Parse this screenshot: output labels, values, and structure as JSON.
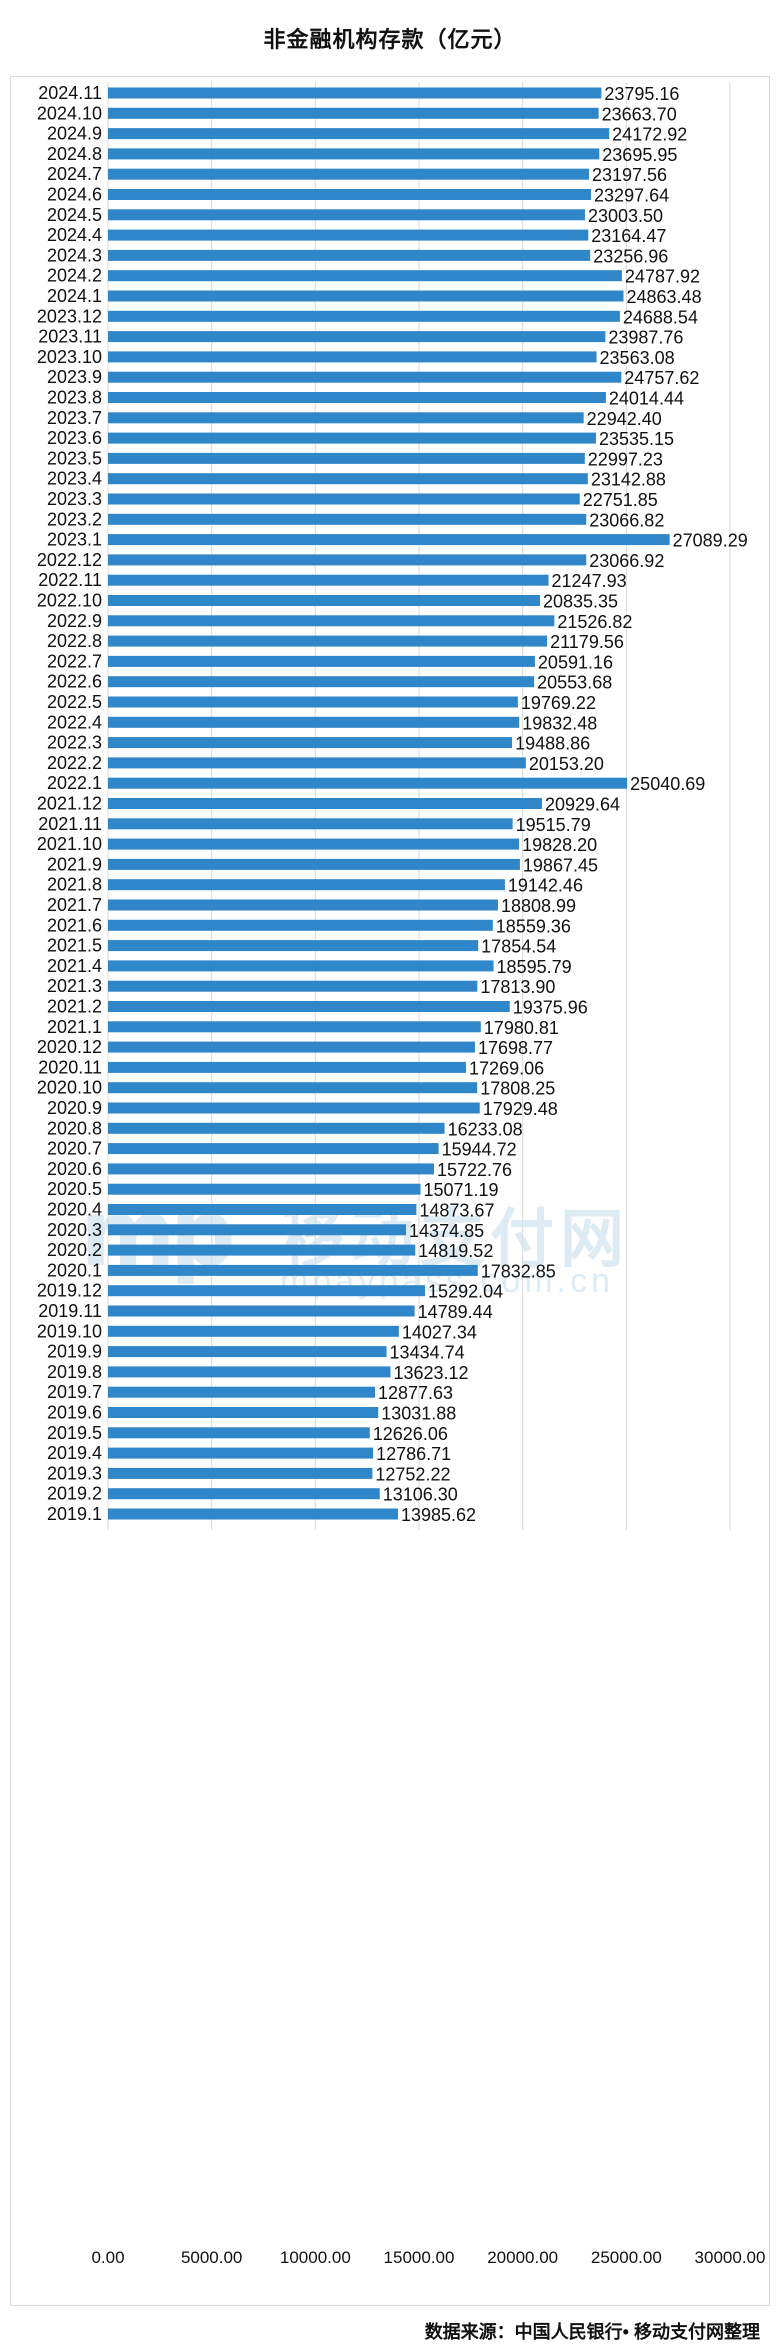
{
  "title": "非金融机构存款（亿元）",
  "source": "数据来源：中国人民银行• 移动支付网整理",
  "watermark": {
    "logo": "mp",
    "cn": "移动支付网",
    "en": "mpaypass.com.cn"
  },
  "colors": {
    "bar": "#2f86c8",
    "grid": "#d9d9d9"
  },
  "chart_data": {
    "type": "bar",
    "orientation": "horizontal",
    "title": "非金融机构存款（亿元）",
    "categories": [
      "2024.11",
      "2024.10",
      "2024.9",
      "2024.8",
      "2024.7",
      "2024.6",
      "2024.5",
      "2024.4",
      "2024.3",
      "2024.2",
      "2024.1",
      "2023.12",
      "2023.11",
      "2023.10",
      "2023.9",
      "2023.8",
      "2023.7",
      "2023.6",
      "2023.5",
      "2023.4",
      "2023.3",
      "2023.2",
      "2023.1",
      "2022.12",
      "2022.11",
      "2022.10",
      "2022.9",
      "2022.8",
      "2022.7",
      "2022.6",
      "2022.5",
      "2022.4",
      "2022.3",
      "2022.2",
      "2022.1",
      "2021.12",
      "2021.11",
      "2021.10",
      "2021.9",
      "2021.8",
      "2021.7",
      "2021.6",
      "2021.5",
      "2021.4",
      "2021.3",
      "2021.2",
      "2021.1",
      "2020.12",
      "2020.11",
      "2020.10",
      "2020.9",
      "2020.8",
      "2020.7",
      "2020.6",
      "2020.5",
      "2020.4",
      "2020.3",
      "2020.2",
      "2020.1",
      "2019.12",
      "2019.11",
      "2019.10",
      "2019.9",
      "2019.8",
      "2019.7",
      "2019.6",
      "2019.5",
      "2019.4",
      "2019.3",
      "2019.2",
      "2019.1"
    ],
    "values": [
      23795.16,
      23663.7,
      24172.92,
      23695.95,
      23197.56,
      23297.64,
      23003.5,
      23164.47,
      23256.96,
      24787.92,
      24863.48,
      24688.54,
      23987.76,
      23563.08,
      24757.62,
      24014.44,
      22942.4,
      23535.15,
      22997.23,
      23142.88,
      22751.85,
      23066.82,
      27089.29,
      23066.92,
      21247.93,
      20835.35,
      21526.82,
      21179.56,
      20591.16,
      20553.68,
      19769.22,
      19832.48,
      19488.86,
      20153.2,
      25040.69,
      20929.64,
      19515.79,
      19828.2,
      19867.45,
      19142.46,
      18808.99,
      18559.36,
      17854.54,
      18595.79,
      17813.9,
      19375.96,
      17980.81,
      17698.77,
      17269.06,
      17808.25,
      17929.48,
      16233.08,
      15944.72,
      15722.76,
      15071.19,
      14873.67,
      14374.85,
      14819.52,
      17832.85,
      15292.04,
      14789.44,
      14027.34,
      13434.74,
      13623.12,
      12877.63,
      13031.88,
      12626.06,
      12786.71,
      12752.22,
      13106.3,
      13985.62
    ],
    "value_labels": [
      "23795.16",
      "23663.70",
      "24172.92",
      "23695.95",
      "23197.56",
      "23297.64",
      "23003.50",
      "23164.47",
      "23256.96",
      "24787.92",
      "24863.48",
      "24688.54",
      "23987.76",
      "23563.08",
      "24757.62",
      "24014.44",
      "22942.40",
      "23535.15",
      "22997.23",
      "23142.88",
      "22751.85",
      "23066.82",
      "27089.29",
      "23066.92",
      "21247.93",
      "20835.35",
      "21526.82",
      "21179.56",
      "20591.16",
      "20553.68",
      "19769.22",
      "19832.48",
      "19488.86",
      "20153.20",
      "25040.69",
      "20929.64",
      "19515.79",
      "19828.20",
      "19867.45",
      "19142.46",
      "18808.99",
      "18559.36",
      "17854.54",
      "18595.79",
      "17813.90",
      "19375.96",
      "17980.81",
      "17698.77",
      "17269.06",
      "17808.25",
      "17929.48",
      "16233.08",
      "15944.72",
      "15722.76",
      "15071.19",
      "14873.67",
      "14374.85",
      "14819.52",
      "17832.85",
      "15292.04",
      "14789.44",
      "14027.34",
      "13434.74",
      "13623.12",
      "12877.63",
      "13031.88",
      "12626.06",
      "12786.71",
      "12752.22",
      "13106.30",
      "13985.62"
    ],
    "xlim": [
      0,
      30000
    ],
    "xticks": [
      0,
      5000,
      10000,
      15000,
      20000,
      25000,
      30000
    ],
    "xtick_labels": [
      "0.00",
      "5000.00",
      "10000.00",
      "15000.00",
      "20000.00",
      "25000.00",
      "30000.00"
    ],
    "grid": true,
    "legend": "none"
  }
}
